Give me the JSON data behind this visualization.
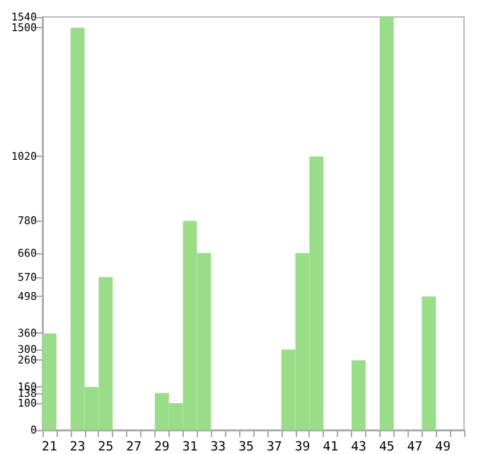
{
  "chart_data": {
    "type": "bar",
    "categories": [
      "21",
      null,
      "23",
      null,
      "25",
      null,
      "27",
      null,
      "29",
      null,
      "31",
      null,
      "33",
      null,
      "35",
      null,
      "37",
      null,
      "39",
      null,
      "41",
      null,
      "43",
      null,
      "45",
      null,
      "47",
      null,
      "49",
      null
    ],
    "values": [
      360,
      0,
      1500,
      160,
      570,
      0,
      0,
      0,
      138,
      100,
      780,
      660,
      0,
      0,
      0,
      0,
      0,
      300,
      660,
      1020,
      0,
      0,
      260,
      0,
      1540,
      0,
      0,
      498,
      0,
      0
    ],
    "color": "#99dd88",
    "ylim": [
      0,
      1540
    ],
    "yticks": [
      0,
      100,
      138,
      160,
      260,
      300,
      360,
      498,
      570,
      660,
      780,
      1020,
      1500,
      1540
    ],
    "grid": false
  }
}
